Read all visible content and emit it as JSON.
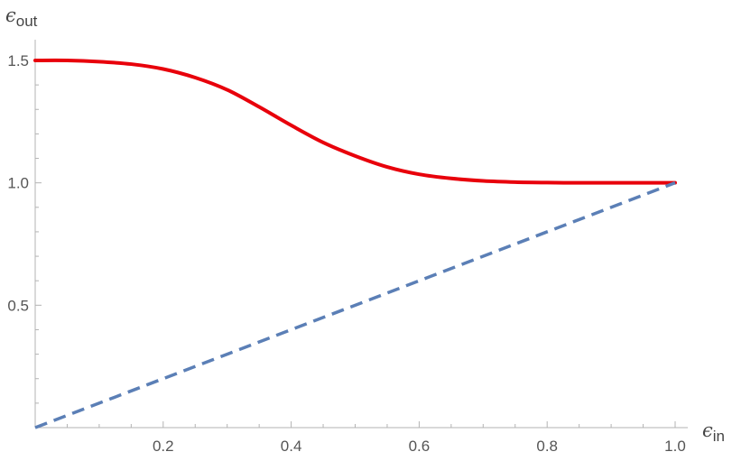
{
  "chart_data": {
    "type": "line",
    "xlabel": {
      "symbol": "ϵ",
      "subscript": "in"
    },
    "ylabel": {
      "symbol": "ϵ",
      "subscript": "out"
    },
    "xlim": [
      0,
      1.0
    ],
    "ylim": [
      0,
      1.5
    ],
    "x_ticks": [
      {
        "value": 0.2,
        "label": "0.2"
      },
      {
        "value": 0.4,
        "label": "0.4"
      },
      {
        "value": 0.6,
        "label": "0.6"
      },
      {
        "value": 0.8,
        "label": "0.8"
      },
      {
        "value": 1.0,
        "label": "1.0"
      }
    ],
    "y_ticks": [
      {
        "value": 0.5,
        "label": "0.5"
      },
      {
        "value": 1.0,
        "label": "1.0"
      },
      {
        "value": 1.5,
        "label": "1.5"
      }
    ],
    "grid": false,
    "series": [
      {
        "style": "solid",
        "color": "#e8000b",
        "x": [
          0.0,
          0.05,
          0.1,
          0.15,
          0.2,
          0.25,
          0.3,
          0.35,
          0.4,
          0.45,
          0.5,
          0.55,
          0.6,
          0.65,
          0.7,
          0.75,
          0.8,
          0.85,
          0.9,
          0.95,
          1.0
        ],
        "y": [
          1.5,
          1.5,
          1.495,
          1.485,
          1.465,
          1.43,
          1.38,
          1.31,
          1.235,
          1.165,
          1.11,
          1.065,
          1.035,
          1.018,
          1.008,
          1.003,
          1.001,
          1.0,
          1.0,
          1.0,
          1.0
        ]
      },
      {
        "style": "dashed",
        "color": "#5b7fb6",
        "x": [
          0.0,
          1.0
        ],
        "y": [
          0.0,
          1.0
        ]
      }
    ]
  }
}
